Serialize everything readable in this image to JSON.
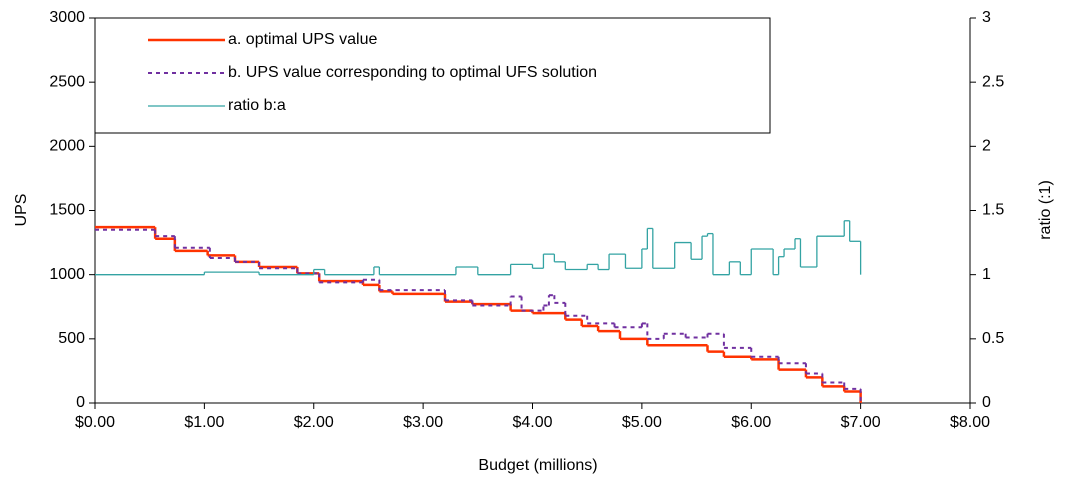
{
  "chart_data": {
    "type": "line",
    "step": true,
    "xlabel": "Budget (millions)",
    "ylabel": "UPS",
    "y2label": "ratio (:1)",
    "xlim": [
      0,
      8
    ],
    "xticks": [
      {
        "value": 0,
        "label": "$0.00"
      },
      {
        "value": 1,
        "label": "$1.00"
      },
      {
        "value": 2,
        "label": "$2.00"
      },
      {
        "value": 3,
        "label": "$3.00"
      },
      {
        "value": 4,
        "label": "$4.00"
      },
      {
        "value": 5,
        "label": "$5.00"
      },
      {
        "value": 6,
        "label": "$6.00"
      },
      {
        "value": 7,
        "label": "$7.00"
      },
      {
        "value": 8,
        "label": "$8.00"
      }
    ],
    "ylim": [
      0,
      3000
    ],
    "yticks": [
      0,
      500,
      1000,
      1500,
      2000,
      2500,
      3000
    ],
    "y2lim": [
      0,
      3
    ],
    "y2ticks": [
      0,
      0.5,
      1,
      1.5,
      2,
      2.5,
      3
    ],
    "legend": "top-left",
    "series": [
      {
        "name": "a. optimal UPS value",
        "color": "#ff3300",
        "dash": false,
        "x": [
          0,
          0.55,
          0.73,
          1.03,
          1.28,
          1.5,
          1.85,
          2.05,
          2.45,
          2.6,
          2.72,
          3.2,
          3.45,
          3.8,
          4.0,
          4.3,
          4.45,
          4.6,
          4.8,
          5.05,
          5.6,
          5.75,
          6.0,
          6.25,
          6.5,
          6.65,
          6.85,
          7.0
        ],
        "values": [
          1370,
          1280,
          1185,
          1150,
          1100,
          1060,
          1010,
          950,
          920,
          870,
          850,
          790,
          770,
          720,
          700,
          650,
          600,
          560,
          500,
          450,
          400,
          360,
          340,
          260,
          200,
          130,
          90,
          0
        ]
      },
      {
        "name": "b. UPS value corresponding to optimal UFS solution",
        "color": "#7030a0",
        "dash": true,
        "x": [
          0,
          0.55,
          0.73,
          1.05,
          1.28,
          1.5,
          1.85,
          2.05,
          2.45,
          2.6,
          2.75,
          3.2,
          3.45,
          3.8,
          3.9,
          4.1,
          4.15,
          4.2,
          4.3,
          4.5,
          4.75,
          5.0,
          5.05,
          5.2,
          5.4,
          5.6,
          5.75,
          6.0,
          6.25,
          6.5,
          6.65,
          6.85,
          7.0
        ],
        "values": [
          1350,
          1300,
          1210,
          1130,
          1100,
          1050,
          1010,
          940,
          960,
          880,
          880,
          800,
          760,
          830,
          720,
          760,
          840,
          780,
          680,
          620,
          590,
          620,
          500,
          540,
          510,
          540,
          430,
          360,
          310,
          230,
          160,
          110,
          0
        ]
      },
      {
        "name": "ratio b:a",
        "color": "#33a3a3",
        "dash": false,
        "axis": "y2",
        "x": [
          0,
          1.0,
          1.5,
          2.0,
          2.1,
          2.55,
          2.6,
          3.3,
          3.5,
          3.8,
          4.0,
          4.1,
          4.2,
          4.3,
          4.5,
          4.6,
          4.7,
          4.85,
          5.0,
          5.05,
          5.1,
          5.3,
          5.45,
          5.55,
          5.6,
          5.65,
          5.8,
          5.9,
          6.0,
          6.2,
          6.25,
          6.3,
          6.4,
          6.45,
          6.6,
          6.85,
          6.9,
          7.0
        ],
        "values": [
          1.0,
          1.02,
          1.0,
          1.04,
          1.0,
          1.06,
          1.0,
          1.06,
          1.0,
          1.08,
          1.05,
          1.16,
          1.1,
          1.04,
          1.08,
          1.04,
          1.16,
          1.05,
          1.2,
          1.36,
          1.05,
          1.25,
          1.12,
          1.3,
          1.32,
          1.0,
          1.1,
          1.0,
          1.2,
          1.0,
          1.14,
          1.2,
          1.28,
          1.06,
          1.3,
          1.42,
          1.26,
          1.0
        ]
      }
    ]
  }
}
